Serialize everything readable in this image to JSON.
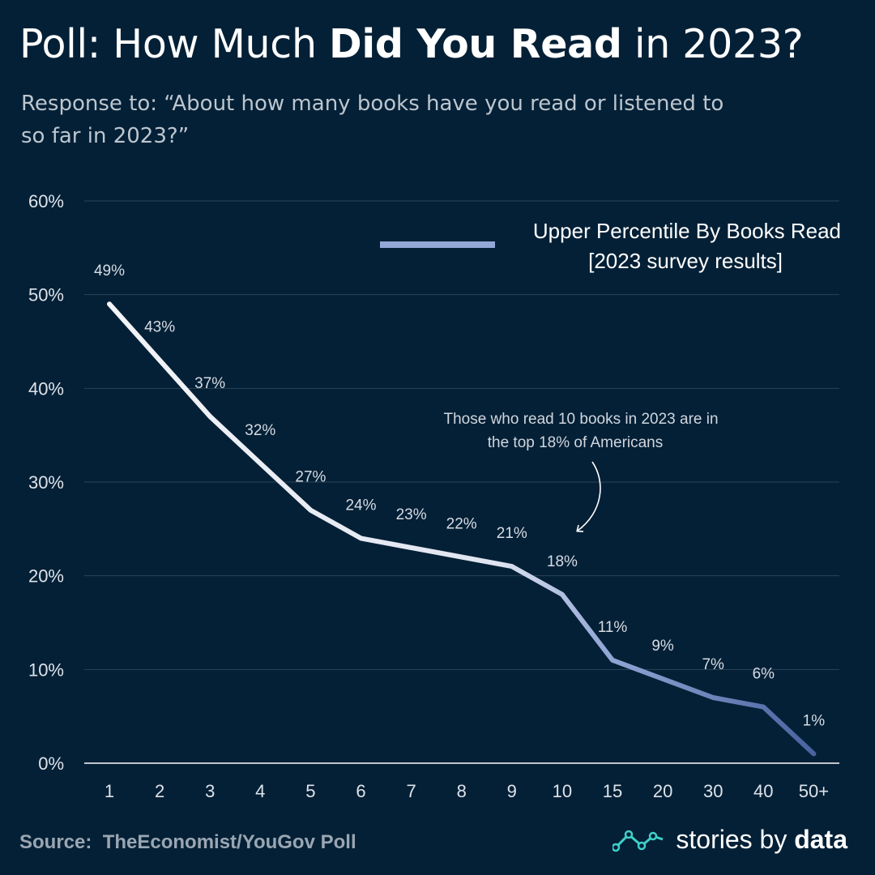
{
  "header": {
    "title_pre": "Poll: How Much ",
    "title_bold": "Did You Read",
    "title_post": " in 2023?",
    "subtitle": "Response to: “About how many books have you read or listened to so far in 2023?”"
  },
  "chart_data": {
    "type": "line",
    "categories": [
      "1",
      "2",
      "3",
      "4",
      "5",
      "6",
      "7",
      "8",
      "9",
      "10",
      "15",
      "20",
      "30",
      "40",
      "50+"
    ],
    "series": [
      {
        "name": "Upper Percentile By Books Read",
        "values": [
          49,
          43,
          37,
          32,
          27,
          24,
          23,
          22,
          21,
          18,
          11,
          9,
          7,
          6,
          1
        ]
      }
    ],
    "value_labels": [
      "49%",
      "43%",
      "37%",
      "32%",
      "27%",
      "24%",
      "23%",
      "22%",
      "21%",
      "18%",
      "11%",
      "9%",
      "7%",
      "6%",
      "1%"
    ],
    "legend": {
      "line1": "Upper Percentile By Books Read",
      "line2": "[2023 survey results]",
      "position": "top-right"
    },
    "ylim": [
      0,
      60
    ],
    "yticks": [
      0,
      10,
      20,
      30,
      40,
      50,
      60
    ],
    "ytick_labels": [
      "0%",
      "10%",
      "20%",
      "30%",
      "40%",
      "50%",
      "60%"
    ],
    "grid": true,
    "annotation": {
      "line1": "Those who read 10 books in 2023 are in",
      "line2": "the top 18% of Americans",
      "target_category": "10"
    },
    "colors": {
      "start": "#f2f4f8",
      "end": "#4a62a0",
      "legend_line": "#93a8d6"
    }
  },
  "footer": {
    "source": "Source:  TheEconomist/YouGov Poll",
    "brand_pre": "stories by ",
    "brand_bold": "data"
  }
}
